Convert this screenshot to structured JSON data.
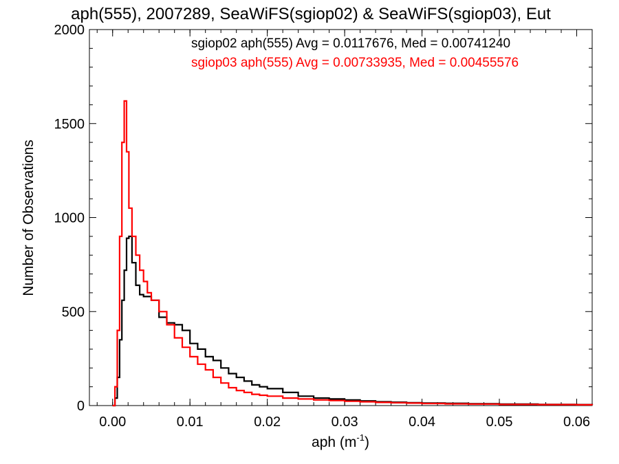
{
  "chart_data": {
    "type": "line",
    "title": "aph(555), 2007289, SeaWiFS(sgiop02) & SeaWiFS(sgiop03), Eut",
    "xlabel": "aph (m",
    "xlabel_sup": "-1",
    "xlabel_close": ")",
    "ylabel": "Number of Observations",
    "xlim": [
      -0.003,
      0.062
    ],
    "ylim": [
      0,
      2000
    ],
    "x_ticks": [
      0.0,
      0.01,
      0.02,
      0.03,
      0.04,
      0.05,
      0.06
    ],
    "x_tick_labels": [
      "0.00",
      "0.01",
      "0.02",
      "0.03",
      "0.04",
      "0.05",
      "0.06"
    ],
    "y_ticks": [
      0,
      500,
      1000,
      1500,
      2000
    ],
    "y_tick_labels": [
      "0",
      "500",
      "1000",
      "1500",
      "2000"
    ],
    "grid": false,
    "legend": [
      {
        "text": "sgiop02 aph(555) Avg = 0.0117676, Med = 0.00741240",
        "color": "#000000"
      },
      {
        "text": "sgiop03 aph(555) Avg = 0.00733935, Med = 0.00455576",
        "color": "#ff0000"
      }
    ],
    "series": [
      {
        "color": "#000000",
        "x": [
          0.0,
          0.0003,
          0.0006,
          0.0009,
          0.0012,
          0.0015,
          0.0018,
          0.0021,
          0.0025,
          0.003,
          0.0035,
          0.004,
          0.005,
          0.006,
          0.007,
          0.008,
          0.009,
          0.01,
          0.011,
          0.012,
          0.013,
          0.014,
          0.015,
          0.016,
          0.017,
          0.018,
          0.019,
          0.02,
          0.022,
          0.024,
          0.026,
          0.028,
          0.03,
          0.032,
          0.034,
          0.036,
          0.038,
          0.04,
          0.043,
          0.046,
          0.05,
          0.055,
          0.06,
          0.062
        ],
        "y": [
          0,
          40,
          150,
          350,
          560,
          720,
          890,
          900,
          760,
          640,
          590,
          580,
          560,
          470,
          440,
          430,
          400,
          330,
          300,
          260,
          240,
          200,
          170,
          150,
          130,
          110,
          100,
          90,
          70,
          50,
          40,
          35,
          30,
          25,
          20,
          18,
          15,
          13,
          12,
          10,
          8,
          6,
          5,
          4
        ]
      },
      {
        "color": "#ff0000",
        "x": [
          0.0,
          0.0003,
          0.0006,
          0.0009,
          0.0012,
          0.0015,
          0.0018,
          0.0021,
          0.0025,
          0.003,
          0.0035,
          0.004,
          0.0045,
          0.005,
          0.006,
          0.007,
          0.008,
          0.009,
          0.01,
          0.011,
          0.012,
          0.013,
          0.014,
          0.015,
          0.016,
          0.017,
          0.018,
          0.019,
          0.02,
          0.022,
          0.024,
          0.026,
          0.028,
          0.03,
          0.032,
          0.034,
          0.036,
          0.038,
          0.04,
          0.043,
          0.046,
          0.05,
          0.055,
          0.06,
          0.062
        ],
        "y": [
          0,
          100,
          400,
          900,
          1400,
          1620,
          1350,
          1050,
          900,
          800,
          720,
          660,
          600,
          560,
          500,
          430,
          360,
          310,
          260,
          220,
          190,
          150,
          120,
          95,
          80,
          70,
          60,
          55,
          50,
          40,
          35,
          30,
          27,
          23,
          20,
          17,
          15,
          13,
          11,
          9,
          8,
          6,
          5,
          4,
          3
        ]
      }
    ]
  }
}
